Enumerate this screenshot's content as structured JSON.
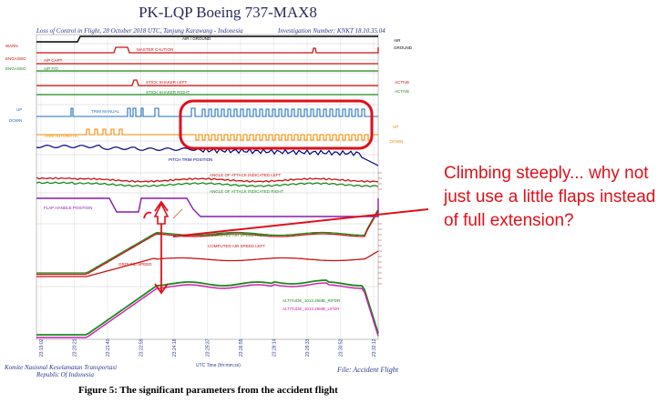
{
  "figure": {
    "title": "PK-LQP Boeing 737-MAX8",
    "subtitle_left": "Loss of Control in Flight, 28 October 2018 UTC, Tanjung Karawang - Indonesia",
    "subtitle_right": "Investigation Number: KNKT 18.10.35.04",
    "caption": "Figure 5: The significant parameters from the accident flight",
    "footer_left_1": "Komite Nasional Keselamatan Transportasi",
    "footer_left_2": "Republic Of Indonesia",
    "footer_right": "File: Accident Flight",
    "x_axis_title": "UTC Time (hh:mm:ss)"
  },
  "annotation": {
    "text": "Climbing steeply... why not just use a little flaps instead of full extension?",
    "color": "#e0101a"
  },
  "chart_data": {
    "type": "line",
    "x": [
      "23:19:02",
      "23:20:21",
      "23:21:40",
      "23:22:59",
      "23:24:18",
      "23:25:37",
      "23:26:55",
      "23:28:14",
      "23:29:33",
      "23:30:52",
      "23:32:12"
    ],
    "left_tags": [
      "WARN",
      "ENGAGED",
      "ENGAGED",
      "UP",
      "DOWN"
    ],
    "right_tags": {
      "air": "AIR",
      "ground": "GROUND",
      "active1": "ACTIVE",
      "active2": "ACTIVE",
      "up": "UP",
      "down": "DOWN"
    },
    "series": [
      {
        "name": "AIR / GROUND",
        "color": "#000000"
      },
      {
        "name": "MASTER CAUTION",
        "color": "#cc1111"
      },
      {
        "name": "A/P CAPT",
        "color": "#cc1111"
      },
      {
        "name": "A/P F/O",
        "color": "#1a8a1a"
      },
      {
        "name": "STICK SHAKER LEFT",
        "color": "#cc1111"
      },
      {
        "name": "STICK SHAKER RIGHT",
        "color": "#1a8a1a"
      },
      {
        "name": "TRIM MANUAL",
        "color": "#1f6fc0"
      },
      {
        "name": "TRIM AUTOMATIC",
        "color": "#f08a00"
      },
      {
        "name": "PITCH TRIM POSITION",
        "color": "#000080"
      },
      {
        "name": "ANGLE OF ATTACK INDICATED LEFT",
        "color": "#cc1111"
      },
      {
        "name": "ANGLE OF ATTACK INDICATED RIGHT",
        "color": "#1a8a1a"
      },
      {
        "name": "FLAP HANDLE POSITION",
        "color": "#8a1ab0"
      },
      {
        "name": "COMPUTED AIR SPEED RIGHT",
        "color": "#1a8a1a"
      },
      {
        "name": "COMPUTED AIR SPEED LEFT",
        "color": "#cc1111"
      },
      {
        "name": "GROUND SPEED",
        "color": "#cc1111"
      },
      {
        "name": "ALTITUDE_1013.25MB_R/FDR",
        "color": "#1a8a1a"
      },
      {
        "name": "ALTITUDE_1013.25MB_L/FDR",
        "color": "#d01ab0"
      }
    ]
  },
  "colors": {
    "highlight": "#e0101a",
    "panel_border": "#aaaaaa"
  }
}
